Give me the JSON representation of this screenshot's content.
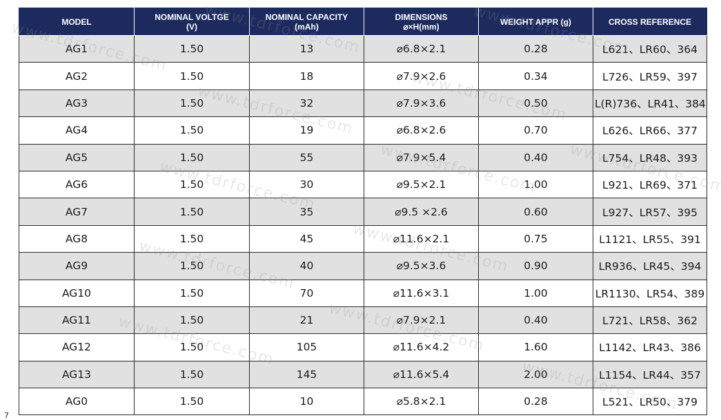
{
  "table": {
    "headers": [
      [
        "MODEL",
        ""
      ],
      [
        "NOMINAL VOLTGE",
        "(V)"
      ],
      [
        "NOMINAL CAPACITY",
        "(mAh)"
      ],
      [
        "DIMENSIONS",
        "⌀×H(mm)"
      ],
      [
        "WEIGHT APPR (g)",
        ""
      ],
      [
        "CROSS REFERENCE",
        ""
      ]
    ],
    "rows": [
      [
        "AG1",
        "1.50",
        "13",
        "⌀6.8×2.1",
        "0.28",
        "L621、LR60、364"
      ],
      [
        "AG2",
        "1.50",
        "18",
        "⌀7.9×2.6",
        "0.34",
        "L726、LR59、397"
      ],
      [
        "AG3",
        "1.50",
        "32",
        "⌀7.9×3.6",
        "0.50",
        "L(R)736、LR41、384"
      ],
      [
        "AG4",
        "1.50",
        "19",
        "⌀6.8×2.6",
        "0.70",
        "L626、LR66、377"
      ],
      [
        "AG5",
        "1.50",
        "55",
        "⌀7.9×5.4",
        "0.40",
        "L754、LR48、393"
      ],
      [
        "AG6",
        "1.50",
        "30",
        "⌀9.5×2.1",
        "1.00",
        "L921、LR69、371"
      ],
      [
        "AG7",
        "1.50",
        "35",
        "⌀9.5 ×2.6",
        "0.60",
        "L927、LR57、395"
      ],
      [
        "AG8",
        "1.50",
        "45",
        "⌀11.6×2.1",
        "0.75",
        "L1121、LR55、391"
      ],
      [
        "AG9",
        "1.50",
        "40",
        "⌀9.5×3.6",
        "0.90",
        "LR936、LR45、394"
      ],
      [
        "AG10",
        "1.50",
        "70",
        "⌀11.6×3.1",
        "1.00",
        "LR1130、LR54、389"
      ],
      [
        "AG11",
        "1.50",
        "21",
        "⌀7.9×2.1",
        "0.40",
        "L721、LR58、362"
      ],
      [
        "AG12",
        "1.50",
        "105",
        "⌀11.6×4.2",
        "1.60",
        "L1142、LR43、386"
      ],
      [
        "AG13",
        "1.50",
        "145",
        "⌀11.6×5.4",
        "2.00",
        "L1154、LR44、357"
      ],
      [
        "AG0",
        "1.50",
        "10",
        "⌀5.8×2.1",
        "0.28",
        "L521、LR50、379"
      ]
    ]
  },
  "watermark": "www.tdrforce.com",
  "corner_mark": "7",
  "colors": {
    "header_bg": "#1c2a5e",
    "header_text": "#ffffff",
    "row_shade": "#e1e1e1",
    "grid_line": "#2a2a2a"
  }
}
